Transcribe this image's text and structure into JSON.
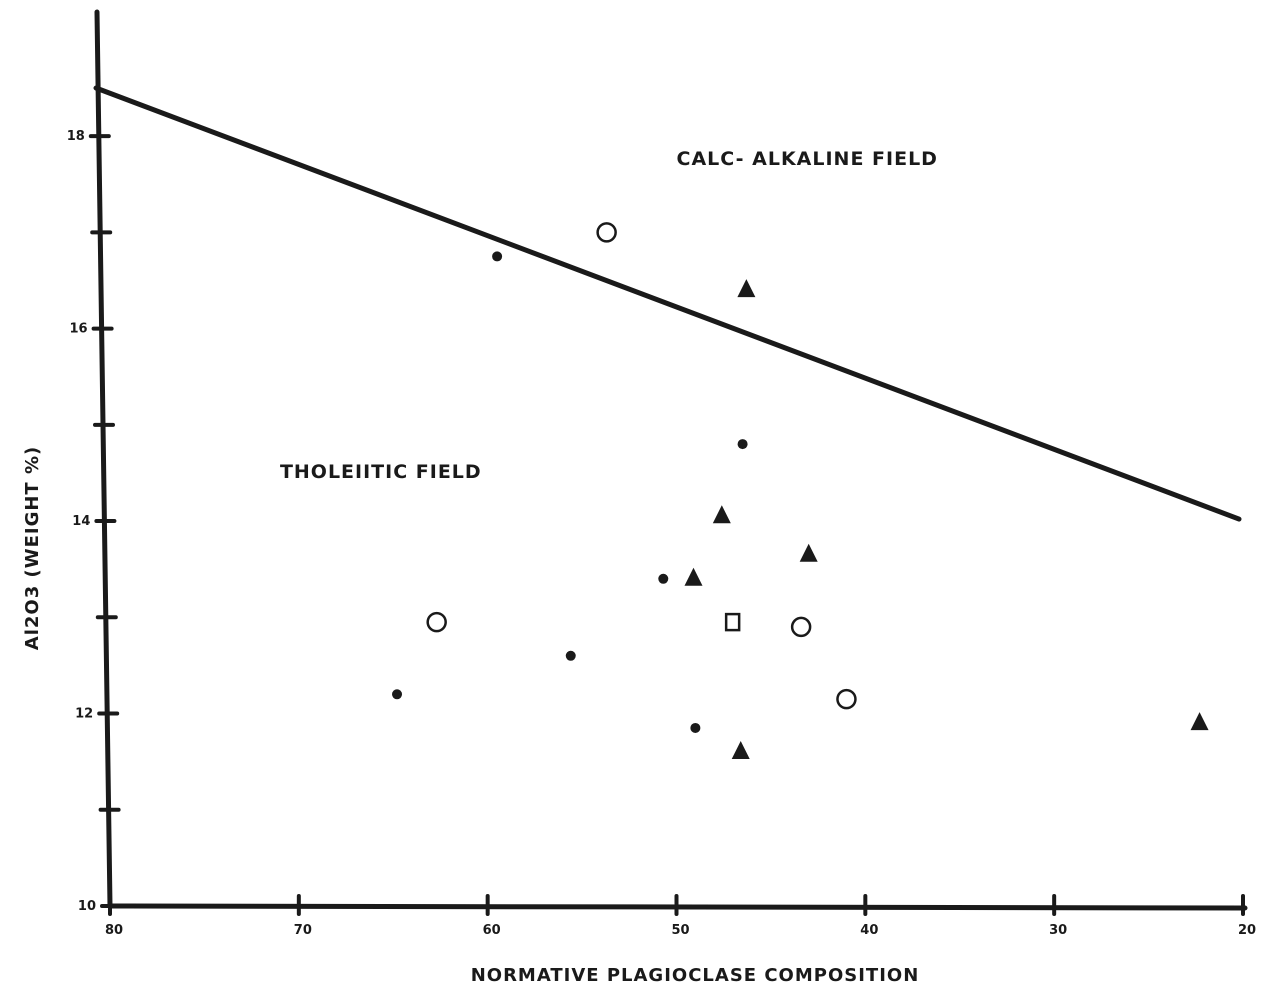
{
  "chart_data": {
    "type": "scatter",
    "title": "",
    "xlabel": "NORMATIVE PLAGIOCLASE COMPOSITION",
    "ylabel": "Al2O3 (WEIGHT %)",
    "xlim": [
      80,
      20
    ],
    "ylim": [
      10,
      18.5
    ],
    "x_ticks": [
      80,
      70,
      60,
      50,
      40,
      30,
      20
    ],
    "x_tick_labels": [
      "80",
      "70",
      "60",
      "50",
      "40",
      "30",
      "20"
    ],
    "y_ticks": [
      10,
      11,
      12,
      13,
      14,
      15,
      16,
      17,
      18
    ],
    "y_tick_labels": [
      "10",
      "",
      "12",
      "",
      "14",
      "",
      "16",
      "",
      "18"
    ],
    "grid": false,
    "legend": "none",
    "boundary_line": {
      "x": [
        80,
        20
      ],
      "y": [
        18.5,
        14
      ]
    },
    "annotations": [
      {
        "text": "CALC- ALKALINE FIELD",
        "x": 50,
        "y": 17.7
      },
      {
        "text": "THOLEIITIC FIELD",
        "x": 71,
        "y": 14.45
      }
    ],
    "series": [
      {
        "marker": "dot",
        "points": [
          {
            "x": 59.5,
            "y": 16.75
          },
          {
            "x": 64.8,
            "y": 12.2
          },
          {
            "x": 55.6,
            "y": 12.6
          },
          {
            "x": 50.7,
            "y": 13.4
          },
          {
            "x": 49.0,
            "y": 11.85
          },
          {
            "x": 46.5,
            "y": 14.8
          }
        ]
      },
      {
        "marker": "open-circle",
        "points": [
          {
            "x": 53.7,
            "y": 17.0
          },
          {
            "x": 62.7,
            "y": 12.95
          },
          {
            "x": 43.4,
            "y": 12.9
          },
          {
            "x": 41.0,
            "y": 12.15
          }
        ]
      },
      {
        "marker": "triangle",
        "points": [
          {
            "x": 46.3,
            "y": 16.4
          },
          {
            "x": 47.6,
            "y": 14.05
          },
          {
            "x": 43.0,
            "y": 13.65
          },
          {
            "x": 49.1,
            "y": 13.4
          },
          {
            "x": 46.6,
            "y": 11.6
          },
          {
            "x": 22.3,
            "y": 11.9
          }
        ]
      },
      {
        "marker": "open-square",
        "points": [
          {
            "x": 47.0,
            "y": 12.95
          }
        ]
      }
    ]
  },
  "colors": {
    "ink": "#1a1a1a",
    "paper": "#ffffff"
  }
}
